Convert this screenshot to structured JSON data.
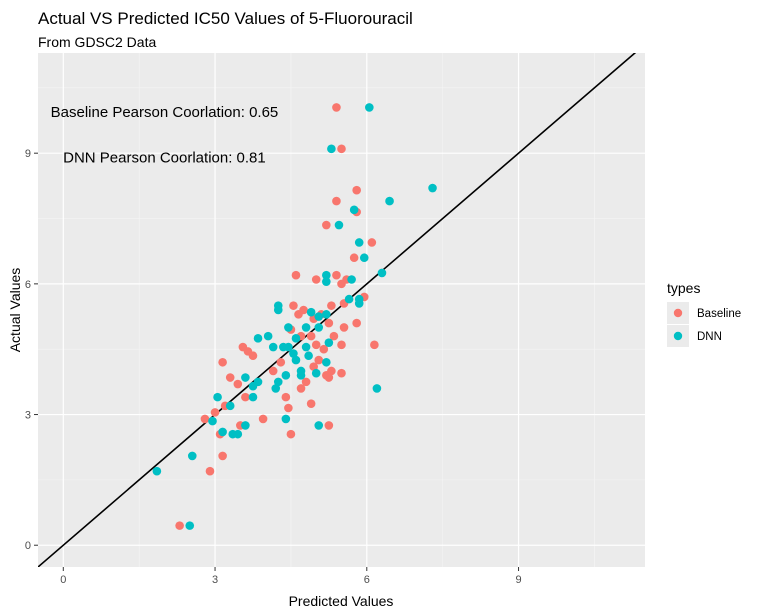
{
  "chart_data": {
    "type": "scatter",
    "title": "Actual VS Predicted IC50 Values of 5-Fluorouracil",
    "subtitle": "From GDSC2 Data",
    "xlabel": "Predicted Values",
    "ylabel": "Actual Values",
    "xlim": [
      -0.5,
      11.5
    ],
    "ylim": [
      -0.5,
      11.3
    ],
    "xticks": [
      0,
      3,
      6,
      9
    ],
    "yticks": [
      0,
      3,
      6,
      9
    ],
    "grid": true,
    "reference_line": {
      "slope": 1,
      "intercept": 0,
      "color": "#000000"
    },
    "annotations": [
      {
        "text": "Baseline Pearson Coorlation:  0.65",
        "x": 2.0,
        "y": 9.95
      },
      {
        "text": "DNN Pearson Coorlation:  0.81",
        "x": 2.0,
        "y": 8.9
      }
    ],
    "legend": {
      "title": "types",
      "position": "right"
    },
    "series": [
      {
        "name": "Baseline",
        "color": "#F8766D",
        "points": [
          [
            5.4,
            10.05
          ],
          [
            5.5,
            9.1
          ],
          [
            5.8,
            8.15
          ],
          [
            5.4,
            7.9
          ],
          [
            5.8,
            7.65
          ],
          [
            5.2,
            7.35
          ],
          [
            6.1,
            6.95
          ],
          [
            5.75,
            6.6
          ],
          [
            4.6,
            6.2
          ],
          [
            5.0,
            6.1
          ],
          [
            5.4,
            6.2
          ],
          [
            5.6,
            6.1
          ],
          [
            5.5,
            6.0
          ],
          [
            5.95,
            5.7
          ],
          [
            5.3,
            5.5
          ],
          [
            5.55,
            5.55
          ],
          [
            4.55,
            5.5
          ],
          [
            4.75,
            5.4
          ],
          [
            4.65,
            5.3
          ],
          [
            4.95,
            5.2
          ],
          [
            5.1,
            5.3
          ],
          [
            5.25,
            5.1
          ],
          [
            5.55,
            5.0
          ],
          [
            5.8,
            5.1
          ],
          [
            4.5,
            4.95
          ],
          [
            4.7,
            4.8
          ],
          [
            4.9,
            4.8
          ],
          [
            5.35,
            4.8
          ],
          [
            5.0,
            4.6
          ],
          [
            5.15,
            4.5
          ],
          [
            5.5,
            4.6
          ],
          [
            6.15,
            4.6
          ],
          [
            3.55,
            4.55
          ],
          [
            3.65,
            4.45
          ],
          [
            3.75,
            4.35
          ],
          [
            4.3,
            4.2
          ],
          [
            5.05,
            4.25
          ],
          [
            4.95,
            4.1
          ],
          [
            5.3,
            4.0
          ],
          [
            3.15,
            4.2
          ],
          [
            4.15,
            4.0
          ],
          [
            5.2,
            3.9
          ],
          [
            5.25,
            3.85
          ],
          [
            5.5,
            3.95
          ],
          [
            3.3,
            3.85
          ],
          [
            3.45,
            3.7
          ],
          [
            4.8,
            3.75
          ],
          [
            4.4,
            3.4
          ],
          [
            3.6,
            3.4
          ],
          [
            4.7,
            3.6
          ],
          [
            4.9,
            3.25
          ],
          [
            4.45,
            3.15
          ],
          [
            3.2,
            3.2
          ],
          [
            3.0,
            3.05
          ],
          [
            5.25,
            2.75
          ],
          [
            2.8,
            2.9
          ],
          [
            3.95,
            2.9
          ],
          [
            3.5,
            2.75
          ],
          [
            3.1,
            2.55
          ],
          [
            4.5,
            2.55
          ],
          [
            3.15,
            2.05
          ],
          [
            2.9,
            1.7
          ],
          [
            2.3,
            0.45
          ]
        ]
      },
      {
        "name": "DNN",
        "color": "#00BFC4",
        "points": [
          [
            6.05,
            10.05
          ],
          [
            5.3,
            9.1
          ],
          [
            7.3,
            8.2
          ],
          [
            6.45,
            7.9
          ],
          [
            5.75,
            7.7
          ],
          [
            5.45,
            7.35
          ],
          [
            5.85,
            6.95
          ],
          [
            5.95,
            6.6
          ],
          [
            6.3,
            6.25
          ],
          [
            5.2,
            6.2
          ],
          [
            5.7,
            6.1
          ],
          [
            5.2,
            6.05
          ],
          [
            5.65,
            5.65
          ],
          [
            5.85,
            5.65
          ],
          [
            5.85,
            5.55
          ],
          [
            4.25,
            5.5
          ],
          [
            4.25,
            5.4
          ],
          [
            5.2,
            5.3
          ],
          [
            4.9,
            5.35
          ],
          [
            5.05,
            5.25
          ],
          [
            4.45,
            5.0
          ],
          [
            4.8,
            5.0
          ],
          [
            5.05,
            5.0
          ],
          [
            4.05,
            4.8
          ],
          [
            3.85,
            4.75
          ],
          [
            4.6,
            4.75
          ],
          [
            5.25,
            4.65
          ],
          [
            4.15,
            4.55
          ],
          [
            4.35,
            4.55
          ],
          [
            4.45,
            4.55
          ],
          [
            4.8,
            4.55
          ],
          [
            4.55,
            4.4
          ],
          [
            4.85,
            4.35
          ],
          [
            4.6,
            4.25
          ],
          [
            5.2,
            4.2
          ],
          [
            4.7,
            4.0
          ],
          [
            3.6,
            3.85
          ],
          [
            4.4,
            3.9
          ],
          [
            4.7,
            3.9
          ],
          [
            5.0,
            3.95
          ],
          [
            3.85,
            3.75
          ],
          [
            4.25,
            3.75
          ],
          [
            3.75,
            3.65
          ],
          [
            4.2,
            3.6
          ],
          [
            6.2,
            3.6
          ],
          [
            3.05,
            3.4
          ],
          [
            3.75,
            3.4
          ],
          [
            3.3,
            3.2
          ],
          [
            4.4,
            2.9
          ],
          [
            2.95,
            2.85
          ],
          [
            3.6,
            2.75
          ],
          [
            5.05,
            2.75
          ],
          [
            3.15,
            2.6
          ],
          [
            3.35,
            2.55
          ],
          [
            3.45,
            2.55
          ],
          [
            2.55,
            2.05
          ],
          [
            1.85,
            1.7
          ],
          [
            2.5,
            0.45
          ]
        ]
      }
    ]
  }
}
